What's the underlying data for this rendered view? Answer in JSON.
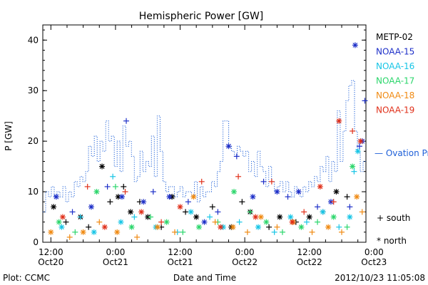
{
  "chart_data": {
    "type": "scatter",
    "title": "Hemispheric Power [GW]",
    "ylabel": "P [GW]",
    "xlabel": "Date and Time",
    "ylim": [
      0,
      43
    ],
    "yticks": [
      0,
      10,
      20,
      30,
      40
    ],
    "x_unit": "hours since 2012-10-20 12:00",
    "xlim": [
      -1.5,
      58.5
    ],
    "x_ticks": [
      {
        "x": 0,
        "top": "12:00",
        "bottom": "Oct20"
      },
      {
        "x": 12,
        "top": "0:00",
        "bottom": "Oct21"
      },
      {
        "x": 24,
        "top": "12:00",
        "bottom": "Oct21"
      },
      {
        "x": 36,
        "top": "0:00",
        "bottom": "Oct22"
      },
      {
        "x": 48,
        "top": "12:00",
        "bottom": "Oct22"
      },
      {
        "x": 60,
        "top": "0:00",
        "bottom": "Oct23"
      }
    ],
    "legend": [
      "METP-02",
      "NOAA-15",
      "NOAA-16",
      "NOAA-17",
      "NOAA-18",
      "NOAA-19"
    ],
    "legend_colors": [
      "#000000",
      "#1d2fc8",
      "#17c5e6",
      "#2bd66b",
      "#f08a12",
      "#e0301a"
    ],
    "ovation_label": "— Ovation Prime HPI",
    "ovation_color": "#1d5fd8",
    "marker_notes": [
      "+ south",
      "* north"
    ],
    "ovation_series": {
      "name": "Ovation Prime HPI",
      "values": [
        6,
        10,
        9,
        11,
        9,
        10,
        9,
        11,
        8,
        10,
        9,
        12,
        11,
        13,
        12,
        14,
        19,
        17,
        21,
        16,
        20,
        18,
        24,
        20,
        21,
        15,
        20,
        14,
        23,
        19,
        20,
        17,
        12,
        13,
        18,
        14,
        16,
        15,
        21,
        13,
        25,
        18,
        12,
        10,
        11,
        11,
        9,
        10,
        11,
        9,
        10,
        10,
        9,
        12,
        8,
        11,
        9,
        10,
        10,
        12,
        11,
        14,
        16,
        24,
        24,
        19,
        18,
        17,
        19,
        18,
        17,
        18,
        14,
        16,
        13,
        18,
        15,
        14,
        11,
        15,
        12,
        10,
        11,
        12,
        10,
        12,
        10,
        9,
        11,
        10,
        9,
        11,
        10,
        12,
        11,
        13,
        12,
        15,
        14,
        17,
        12,
        16,
        14,
        26,
        16,
        22,
        28,
        31,
        32,
        22,
        18,
        14,
        16
      ]
    },
    "satellite_series": [
      {
        "name": "METP-02",
        "color": "#000000",
        "x": [
          0.5,
          2.8,
          5.5,
          7.0,
          9.5,
          11.0,
          12.5,
          13.5,
          14.8,
          16.5,
          18.0,
          20.5,
          22.5,
          25.0,
          27.0,
          30.0,
          33.5,
          35.5,
          37.0,
          40.5,
          42.5,
          45.5,
          48.0,
          50.5,
          53.0,
          55.0
        ],
        "y": [
          7,
          4,
          5,
          3,
          15,
          8,
          9,
          11,
          6,
          8,
          5,
          3,
          9,
          6,
          5,
          7,
          3,
          8,
          6,
          3,
          5,
          4,
          5,
          6,
          10,
          9
        ]
      },
      {
        "name": "NOAA-15",
        "color": "#1d2fc8",
        "x": [
          1.0,
          4.0,
          7.5,
          10.5,
          13.2,
          14.0,
          17.2,
          19.0,
          22.0,
          25.5,
          28.5,
          31.0,
          33.0,
          34.5,
          37.5,
          39.5,
          42.0,
          44.0,
          46.0,
          49.5,
          52.0,
          55.5,
          56.5,
          57.3,
          57.8,
          58.3
        ],
        "y": [
          9,
          6,
          7,
          11,
          9,
          24,
          8,
          10,
          9,
          8,
          4,
          6,
          19,
          17,
          9,
          12,
          10,
          9,
          10,
          7,
          8,
          7,
          39,
          19,
          20,
          28
        ]
      },
      {
        "name": "NOAA-16",
        "color": "#17c5e6",
        "x": [
          2.0,
          5.5,
          8.0,
          11.5,
          13.0,
          15.5,
          19.5,
          23.5,
          26.0,
          29.5,
          32.0,
          35.0,
          38.5,
          41.5,
          44.5,
          47.5,
          50.5,
          53.5,
          55.5,
          56.3,
          57.0
        ],
        "y": [
          3,
          5,
          2,
          13,
          4,
          5,
          3,
          2,
          6,
          5,
          3,
          4,
          3,
          2,
          5,
          4,
          6,
          3,
          5,
          14,
          18
        ]
      },
      {
        "name": "NOAA-17",
        "color": "#2bd66b",
        "x": [
          1.5,
          4.5,
          8.5,
          12.0,
          15.0,
          18.5,
          21.5,
          24.5,
          27.5,
          31.0,
          34.0,
          37.0,
          40.0,
          43.0,
          46.5,
          49.5,
          52.5,
          55.0,
          56.0
        ],
        "y": [
          4,
          2,
          10,
          11,
          3,
          5,
          4,
          2,
          3,
          4,
          10,
          6,
          4,
          2,
          3,
          4,
          5,
          3,
          15
        ]
      },
      {
        "name": "NOAA-18",
        "color": "#f08a12",
        "x": [
          0.0,
          3.5,
          6.0,
          9.0,
          12.3,
          16.0,
          19.8,
          23.0,
          26.5,
          30.5,
          33.8,
          36.5,
          39.0,
          42.0,
          45.0,
          48.5,
          51.5,
          54.0,
          56.8,
          57.8
        ],
        "y": [
          2,
          1,
          2,
          4,
          2,
          1,
          3,
          2,
          9,
          4,
          3,
          2,
          5,
          3,
          4,
          2,
          3,
          2,
          9,
          6
        ]
      },
      {
        "name": "NOAA-19",
        "color": "#e0301a",
        "x": [
          2.2,
          6.8,
          10.0,
          13.8,
          16.8,
          20.5,
          24.0,
          28.0,
          31.5,
          34.8,
          38.0,
          41.0,
          44.8,
          47.0,
          50.0,
          52.5,
          53.5,
          56.0,
          57.5
        ],
        "y": [
          5,
          11,
          3,
          10,
          6,
          4,
          7,
          12,
          3,
          13,
          5,
          12,
          4,
          6,
          11,
          8,
          24,
          22,
          20
        ]
      }
    ]
  },
  "footer": {
    "left": "Plot: CCMC",
    "right": "2012/10/23 11:05:08"
  }
}
